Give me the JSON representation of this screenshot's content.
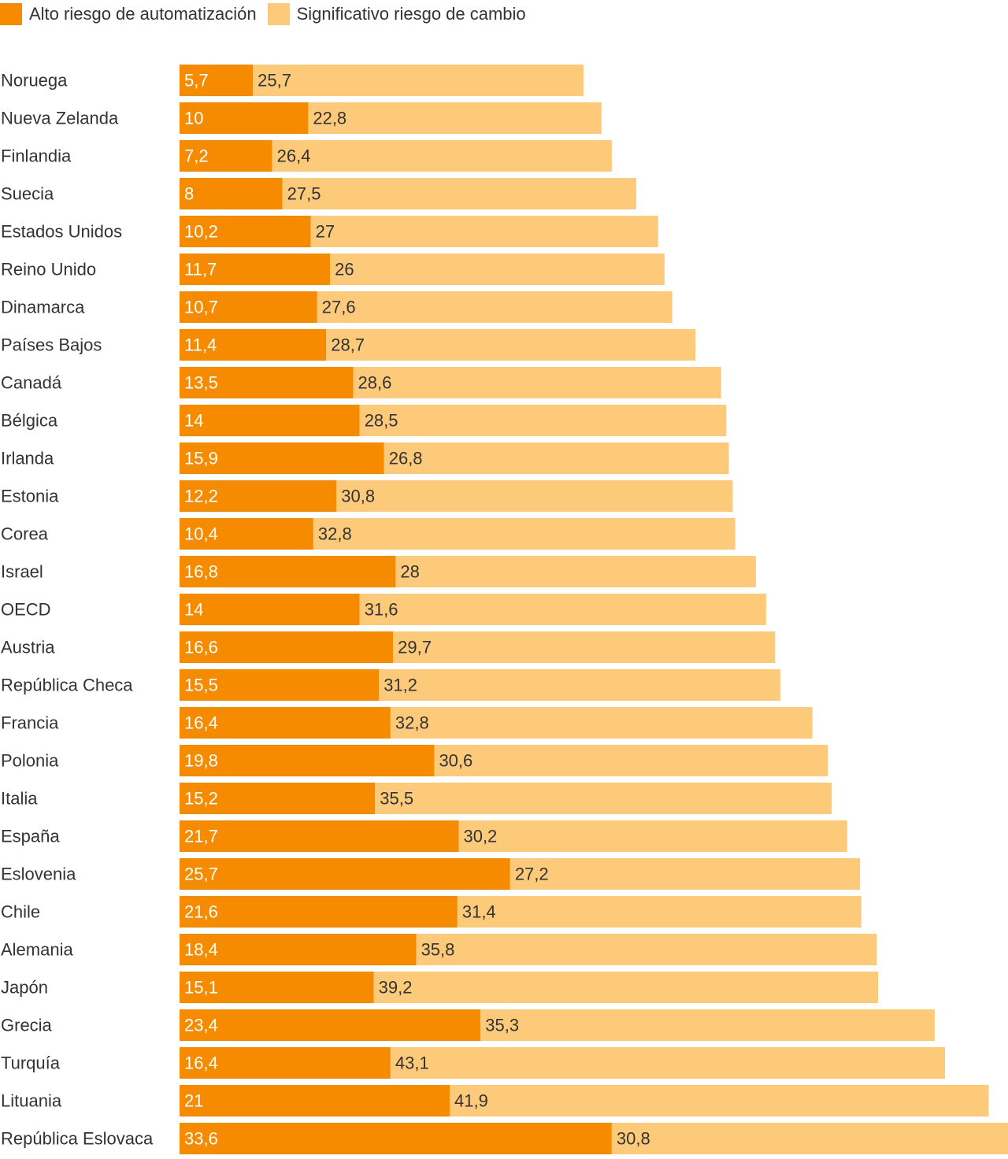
{
  "chart_data": {
    "type": "bar",
    "orientation": "horizontal",
    "stacked": true,
    "title": "",
    "xlabel": "",
    "ylabel": "",
    "legend_position": "top-left",
    "grid": false,
    "categories": [
      "Noruega",
      "Nueva Zelanda",
      "Finlandia",
      "Suecia",
      "Estados Unidos",
      "Reino Unido",
      "Dinamarca",
      "Países Bajos",
      "Canadá",
      "Bélgica",
      "Irlanda",
      "Estonia",
      "Corea",
      "Israel",
      "OECD",
      "Austria",
      "República Checa",
      "Francia",
      "Polonia",
      "Italia",
      "España",
      "Eslovenia",
      "Chile",
      "Alemania",
      "Japón",
      "Grecia",
      "Turquía",
      "Lituania",
      "República Eslovaca"
    ],
    "series": [
      {
        "name": "Alto riesgo de automatización",
        "color": "#f68b00",
        "label_color": "#ffffff",
        "values": [
          5.7,
          10,
          7.2,
          8,
          10.2,
          11.7,
          10.7,
          11.4,
          13.5,
          14,
          15.9,
          12.2,
          10.4,
          16.8,
          14,
          16.6,
          15.5,
          16.4,
          19.8,
          15.2,
          21.7,
          25.7,
          21.6,
          18.4,
          15.1,
          23.4,
          16.4,
          21,
          33.6
        ],
        "labels": [
          "5,7",
          "10",
          "7,2",
          "8",
          "10,2",
          "11,7",
          "10,7",
          "11,4",
          "13,5",
          "14",
          "15,9",
          "12,2",
          "10,4",
          "16,8",
          "14",
          "16,6",
          "15,5",
          "16,4",
          "19,8",
          "15,2",
          "21,7",
          "25,7",
          "21,6",
          "18,4",
          "15,1",
          "23,4",
          "16,4",
          "21",
          "33,6"
        ]
      },
      {
        "name": "Significativo riesgo de cambio",
        "color": "#fdca7a",
        "label_color": "#333333",
        "values": [
          25.7,
          22.8,
          26.4,
          27.5,
          27,
          26,
          27.6,
          28.7,
          28.6,
          28.5,
          26.8,
          30.8,
          32.8,
          28,
          31.6,
          29.7,
          31.2,
          32.8,
          30.6,
          35.5,
          30.2,
          27.2,
          31.4,
          35.8,
          39.2,
          35.3,
          43.1,
          41.9,
          30.8
        ],
        "labels": [
          "25,7",
          "22,8",
          "26,4",
          "27,5",
          "27",
          "26",
          "27,6",
          "28,7",
          "28,6",
          "28,5",
          "26,8",
          "30,8",
          "32,8",
          "28",
          "31,6",
          "29,7",
          "31,2",
          "32,8",
          "30,6",
          "35,5",
          "30,2",
          "27,2",
          "31,4",
          "35,8",
          "39,2",
          "35,3",
          "43,1",
          "41,9",
          "30,8"
        ]
      }
    ],
    "xlim": [
      0,
      64.4
    ]
  }
}
